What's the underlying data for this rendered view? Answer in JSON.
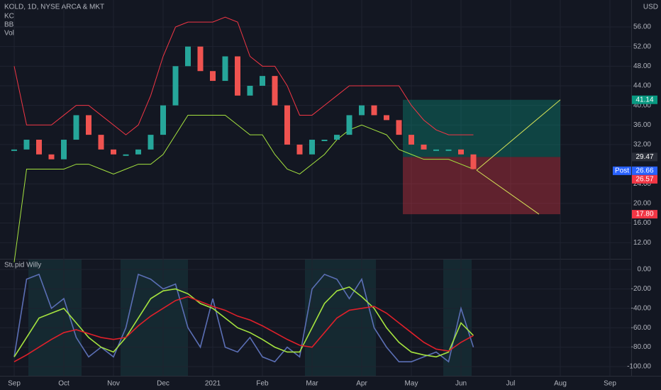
{
  "header": {
    "symbol": "KOLD, 1D, NYSE ARCA & MKT",
    "indicators": [
      "KC",
      "BB",
      "Vol"
    ],
    "currency": "USD"
  },
  "chart_data": [
    {
      "type": "candlestick-close",
      "categories": [
        "Sep",
        null,
        null,
        null,
        "Oct",
        null,
        null,
        null,
        "Nov",
        null,
        null,
        null,
        "Dec",
        null,
        null,
        null,
        "2021",
        null,
        null,
        null,
        "Feb",
        null,
        null,
        null,
        "Mar",
        null,
        null,
        null,
        "Apr",
        null,
        null,
        null,
        "May",
        null,
        null,
        null,
        "Jun",
        null,
        null,
        null,
        "Jul",
        null,
        null,
        null,
        "Aug",
        null,
        null,
        null,
        "Sep"
      ],
      "series": [
        {
          "color": "#26a69a",
          "down_color": "#ef5350",
          "values": [
            31,
            33,
            30,
            29,
            33,
            38,
            34,
            31,
            30,
            30,
            31,
            34,
            40,
            48,
            52,
            47,
            45,
            50,
            42,
            44,
            46,
            40,
            32,
            30,
            33,
            33,
            34,
            38,
            40,
            38,
            37,
            34,
            32,
            31,
            31,
            31,
            30,
            27,
            null,
            null,
            null,
            null,
            null,
            null,
            null,
            null,
            null,
            null,
            null
          ]
        },
        {
          "color": "#f23645",
          "values": [
            48,
            36,
            36,
            36,
            38,
            40,
            40,
            38,
            36,
            34,
            36,
            42,
            50,
            56,
            57,
            57,
            57,
            58,
            57,
            50,
            48,
            48,
            44,
            38,
            38,
            40,
            42,
            44,
            44,
            44,
            44,
            44,
            40,
            37,
            35,
            34,
            34,
            34,
            null,
            null,
            null,
            null,
            null,
            null,
            null,
            null,
            null,
            null,
            null
          ]
        },
        {
          "color": "#a5e33f",
          "values": [
            8,
            27,
            27,
            27,
            27,
            28,
            28,
            27,
            26,
            27,
            28,
            28,
            30,
            34,
            38,
            38,
            38,
            38,
            36,
            34,
            34,
            30,
            27,
            26,
            28,
            30,
            33,
            35,
            36,
            35,
            34,
            31,
            30,
            29,
            29,
            29,
            28,
            27,
            null,
            null,
            null,
            null,
            null,
            null,
            null,
            null,
            null,
            null,
            null
          ]
        }
      ],
      "ylim": [
        8.7,
        61.5
      ],
      "yticks": [
        {
          "value": 12,
          "label": "12.00"
        },
        {
          "value": 16,
          "label": "16.00"
        },
        {
          "value": 20,
          "label": "20.00"
        },
        {
          "value": 24,
          "label": "24.00"
        },
        {
          "value": 32,
          "label": "32.00"
        },
        {
          "value": 36,
          "label": "36.00"
        },
        {
          "value": 40,
          "label": "40.00"
        },
        {
          "value": 44,
          "label": "44.00"
        },
        {
          "value": 48,
          "label": "48.00"
        },
        {
          "value": 52,
          "label": "52.00"
        },
        {
          "value": 56,
          "label": "56.00"
        }
      ],
      "position": {
        "target": 41.14,
        "entry": 29.47,
        "stop": {
          "value": 17.8,
          "label": "17.80"
        }
      },
      "price_labels": [
        {
          "value": 41.14,
          "color": "#089981"
        },
        {
          "value": 29.47,
          "color": "#2a2e39"
        },
        {
          "value": 26.66,
          "color": "#2962ff",
          "tag": "Post"
        },
        {
          "value": 26.57,
          "color": "#f23645"
        },
        {
          "value": {
            "value": 17.8,
            "label": "17.80"
          },
          "color": "#f23645"
        }
      ]
    },
    {
      "type": "line",
      "title": "Stupid Willy",
      "series": [
        {
          "color": "#5b6fb5",
          "values": [
            -90,
            -10,
            -5,
            -40,
            -30,
            -70,
            -90,
            -80,
            -90,
            -60,
            -5,
            -10,
            -20,
            -15,
            -60,
            -80,
            -30,
            -80,
            -85,
            -70,
            -90,
            -95,
            -80,
            -90,
            -20,
            -5,
            -10,
            -30,
            -10,
            -60,
            -80,
            -95,
            -95,
            -90,
            -85,
            -95,
            -40,
            -80,
            null,
            null,
            null,
            null,
            null,
            null,
            null,
            null,
            null,
            null,
            null
          ]
        },
        {
          "color": "#a5e33f",
          "values": [
            -90,
            -70,
            -50,
            -45,
            -40,
            -55,
            -70,
            -80,
            -85,
            -70,
            -50,
            -30,
            -22,
            -20,
            -25,
            -35,
            -40,
            -50,
            -60,
            -65,
            -72,
            -80,
            -85,
            -85,
            -60,
            -35,
            -22,
            -18,
            -28,
            -40,
            -60,
            -75,
            -85,
            -88,
            -90,
            -85,
            -55,
            -68,
            null,
            null,
            null,
            null,
            null,
            null,
            null,
            null,
            null,
            null,
            null
          ]
        },
        {
          "color": "#e0202a",
          "values": [
            -95,
            -88,
            -80,
            -72,
            -65,
            -62,
            -66,
            -70,
            -72,
            -70,
            -58,
            -48,
            -40,
            -32,
            -28,
            -33,
            -38,
            -42,
            -48,
            -52,
            -58,
            -65,
            -72,
            -78,
            -80,
            -65,
            -50,
            -42,
            -40,
            -38,
            -45,
            -55,
            -65,
            -75,
            -82,
            -84,
            -75,
            -68,
            null,
            null,
            null,
            null,
            null,
            null,
            null,
            null,
            null,
            null,
            null
          ]
        }
      ],
      "ylim": [
        -109.5,
        11
      ],
      "yticks": [
        {
          "value": 0,
          "label": "0.00"
        },
        {
          "value": -20,
          "label": "-20.00"
        },
        {
          "value": -40,
          "label": "-40.00"
        },
        {
          "value": -60,
          "label": "-60.00"
        },
        {
          "value": -80,
          "label": "-80.00"
        },
        {
          "value": -100,
          "label": "-100.00"
        }
      ]
    }
  ]
}
